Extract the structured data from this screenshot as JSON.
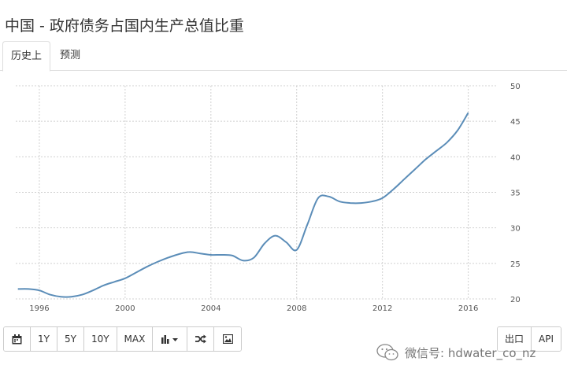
{
  "page": {
    "title": "中国 - 政府债务占国内生产总值比重"
  },
  "tabs": [
    {
      "label": "历史上",
      "active": true
    },
    {
      "label": "预测",
      "active": false
    }
  ],
  "toolbar": {
    "buttons": [
      {
        "icon": "calendar-icon"
      },
      {
        "label": "1Y"
      },
      {
        "label": "5Y"
      },
      {
        "label": "10Y"
      },
      {
        "label": "MAX"
      },
      {
        "icon": "bar-chart-icon",
        "dropdown": true
      },
      {
        "icon": "shuffle-icon"
      },
      {
        "icon": "image-icon"
      }
    ]
  },
  "right_buttons": {
    "export_label": "出口",
    "api_label": "API"
  },
  "watermark": {
    "text": "微信号: hdwater_co_nz",
    "icon": "wechat-icon"
  },
  "colors": {
    "line": "#5b8db8",
    "grid": "#d0d0d0",
    "axis_text": "#555555"
  },
  "chart_data": {
    "type": "line",
    "x_tick_labels": [
      "1996",
      "2000",
      "2004",
      "2008",
      "2012",
      "2016"
    ],
    "y_tick_labels": [
      "20",
      "25",
      "30",
      "35",
      "40",
      "45",
      "50"
    ],
    "xlim": [
      1994.9,
      2017.3
    ],
    "ylim": [
      20,
      50
    ],
    "y_axis_position": "right",
    "grid": true,
    "series": [
      {
        "x": [
          1995.0,
          1995.5,
          1996.0,
          1996.5,
          1997.0,
          1997.5,
          1998.0,
          1998.5,
          1999.0,
          1999.5,
          2000.0,
          2000.5,
          2001.0,
          2001.5,
          2002.0,
          2002.5,
          2003.0,
          2003.5,
          2004.0,
          2004.5,
          2005.0,
          2005.5,
          2006.0,
          2006.5,
          2007.0,
          2007.5,
          2008.0,
          2008.5,
          2009.0,
          2009.5,
          2010.0,
          2010.5,
          2011.0,
          2011.5,
          2012.0,
          2012.5,
          2013.0,
          2013.5,
          2014.0,
          2014.5,
          2015.0,
          2015.5,
          2016.0
        ],
        "values": [
          21.4,
          21.4,
          21.2,
          20.6,
          20.3,
          20.3,
          20.6,
          21.2,
          21.9,
          22.4,
          22.9,
          23.7,
          24.5,
          25.2,
          25.8,
          26.3,
          26.6,
          26.4,
          26.2,
          26.2,
          26.1,
          25.4,
          25.8,
          27.8,
          28.9,
          28.0,
          26.9,
          30.5,
          34.2,
          34.4,
          33.7,
          33.5,
          33.5,
          33.7,
          34.2,
          35.4,
          36.8,
          38.2,
          39.6,
          40.8,
          42.0,
          43.7,
          46.2
        ]
      }
    ]
  }
}
